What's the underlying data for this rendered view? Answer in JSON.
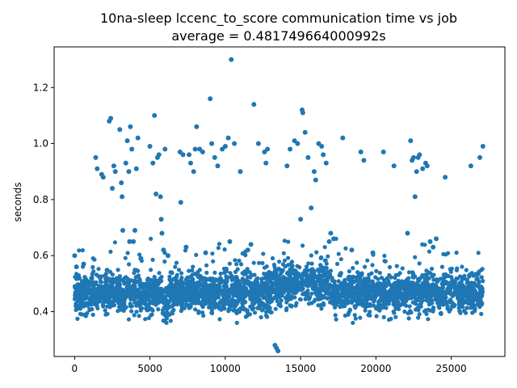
{
  "chart_data": {
    "type": "scatter",
    "title": "10na-sleep lccenc_to_score communication time vs job",
    "subtitle": "average = 0.481749664000992s",
    "xlabel": "",
    "ylabel": "seconds",
    "xlim": [
      -1360,
      28560
    ],
    "ylim": [
      0.24,
      1.345
    ],
    "xticks": [
      0,
      5000,
      10000,
      15000,
      20000,
      25000
    ],
    "yticks": [
      0.4,
      0.6,
      0.8,
      1.0,
      1.2
    ],
    "xtick_labels": [
      "0",
      "5000",
      "10000",
      "15000",
      "20000",
      "25000"
    ],
    "ytick_labels": [
      "0.4",
      "0.6",
      "0.8",
      "1.0",
      "1.2"
    ],
    "grid": false,
    "legend": "none",
    "colors": {
      "points": "#1f77b4"
    },
    "n_points": 27200,
    "baseline_band": {
      "center": 0.465,
      "spread": 0.035,
      "x_range": [
        0,
        27100
      ],
      "note": "dense band of points between ~0.40 and ~0.55 seconds"
    },
    "points": [
      [
        0,
        0.6
      ],
      [
        120,
        0.56
      ],
      [
        300,
        0.52
      ],
      [
        600,
        0.57
      ],
      [
        800,
        0.51
      ],
      [
        1400,
        0.95
      ],
      [
        1500,
        0.91
      ],
      [
        1800,
        0.89
      ],
      [
        1900,
        0.88
      ],
      [
        2300,
        1.08
      ],
      [
        2400,
        1.09
      ],
      [
        2500,
        0.84
      ],
      [
        2600,
        0.92
      ],
      [
        2700,
        0.9
      ],
      [
        3000,
        1.05
      ],
      [
        3100,
        0.86
      ],
      [
        3150,
        0.81
      ],
      [
        3200,
        0.69
      ],
      [
        3400,
        0.93
      ],
      [
        3500,
        1.01
      ],
      [
        3600,
        0.9
      ],
      [
        3650,
        0.65
      ],
      [
        3700,
        1.06
      ],
      [
        3800,
        0.98
      ],
      [
        3900,
        0.65
      ],
      [
        4000,
        0.69
      ],
      [
        4100,
        0.91
      ],
      [
        4200,
        1.02
      ],
      [
        4400,
        0.59
      ],
      [
        5000,
        0.99
      ],
      [
        5200,
        0.93
      ],
      [
        5300,
        1.1
      ],
      [
        5400,
        0.82
      ],
      [
        5500,
        0.95
      ],
      [
        5600,
        0.96
      ],
      [
        5700,
        0.81
      ],
      [
        5750,
        0.73
      ],
      [
        5800,
        0.68
      ],
      [
        5900,
        0.62
      ],
      [
        6000,
        0.98
      ],
      [
        6200,
        0.6
      ],
      [
        7000,
        0.97
      ],
      [
        7050,
        0.79
      ],
      [
        7200,
        0.96
      ],
      [
        7400,
        0.63
      ],
      [
        7600,
        0.96
      ],
      [
        7700,
        0.93
      ],
      [
        7900,
        0.9
      ],
      [
        8000,
        0.98
      ],
      [
        8100,
        1.06
      ],
      [
        8300,
        0.98
      ],
      [
        8500,
        0.97
      ],
      [
        8700,
        0.61
      ],
      [
        9000,
        1.16
      ],
      [
        9100,
        1.0
      ],
      [
        9300,
        0.95
      ],
      [
        9500,
        0.92
      ],
      [
        9800,
        0.98
      ],
      [
        10000,
        0.99
      ],
      [
        10200,
        1.02
      ],
      [
        10300,
        0.65
      ],
      [
        10400,
        1.3
      ],
      [
        10600,
        1.0
      ],
      [
        11000,
        0.9
      ],
      [
        11500,
        0.62
      ],
      [
        11700,
        0.64
      ],
      [
        11900,
        1.14
      ],
      [
        12200,
        1.0
      ],
      [
        12600,
        0.97
      ],
      [
        12700,
        0.93
      ],
      [
        12800,
        0.98
      ],
      [
        13300,
        0.28
      ],
      [
        13400,
        0.27
      ],
      [
        13500,
        0.26
      ],
      [
        14100,
        0.92
      ],
      [
        14300,
        0.98
      ],
      [
        14600,
        1.01
      ],
      [
        14800,
        1.0
      ],
      [
        15000,
        0.73
      ],
      [
        15100,
        1.12
      ],
      [
        15150,
        1.11
      ],
      [
        15300,
        1.04
      ],
      [
        15500,
        0.95
      ],
      [
        15700,
        0.77
      ],
      [
        15900,
        0.9
      ],
      [
        16000,
        0.87
      ],
      [
        16200,
        1.0
      ],
      [
        16400,
        0.99
      ],
      [
        16500,
        0.96
      ],
      [
        16700,
        0.93
      ],
      [
        16900,
        0.65
      ],
      [
        17000,
        0.68
      ],
      [
        17200,
        0.66
      ],
      [
        17800,
        1.02
      ],
      [
        18400,
        0.62
      ],
      [
        19000,
        0.97
      ],
      [
        19200,
        0.94
      ],
      [
        19800,
        0.61
      ],
      [
        20500,
        0.97
      ],
      [
        21200,
        0.92
      ],
      [
        22100,
        0.68
      ],
      [
        22300,
        1.01
      ],
      [
        22400,
        0.94
      ],
      [
        22500,
        0.95
      ],
      [
        22600,
        0.81
      ],
      [
        22700,
        0.9
      ],
      [
        22800,
        0.95
      ],
      [
        22900,
        0.96
      ],
      [
        23100,
        0.91
      ],
      [
        23300,
        0.93
      ],
      [
        23400,
        0.92
      ],
      [
        23600,
        0.65
      ],
      [
        23800,
        0.63
      ],
      [
        24000,
        0.66
      ],
      [
        24600,
        0.88
      ],
      [
        26300,
        0.92
      ],
      [
        26900,
        0.95
      ],
      [
        27100,
        0.99
      ]
    ]
  }
}
